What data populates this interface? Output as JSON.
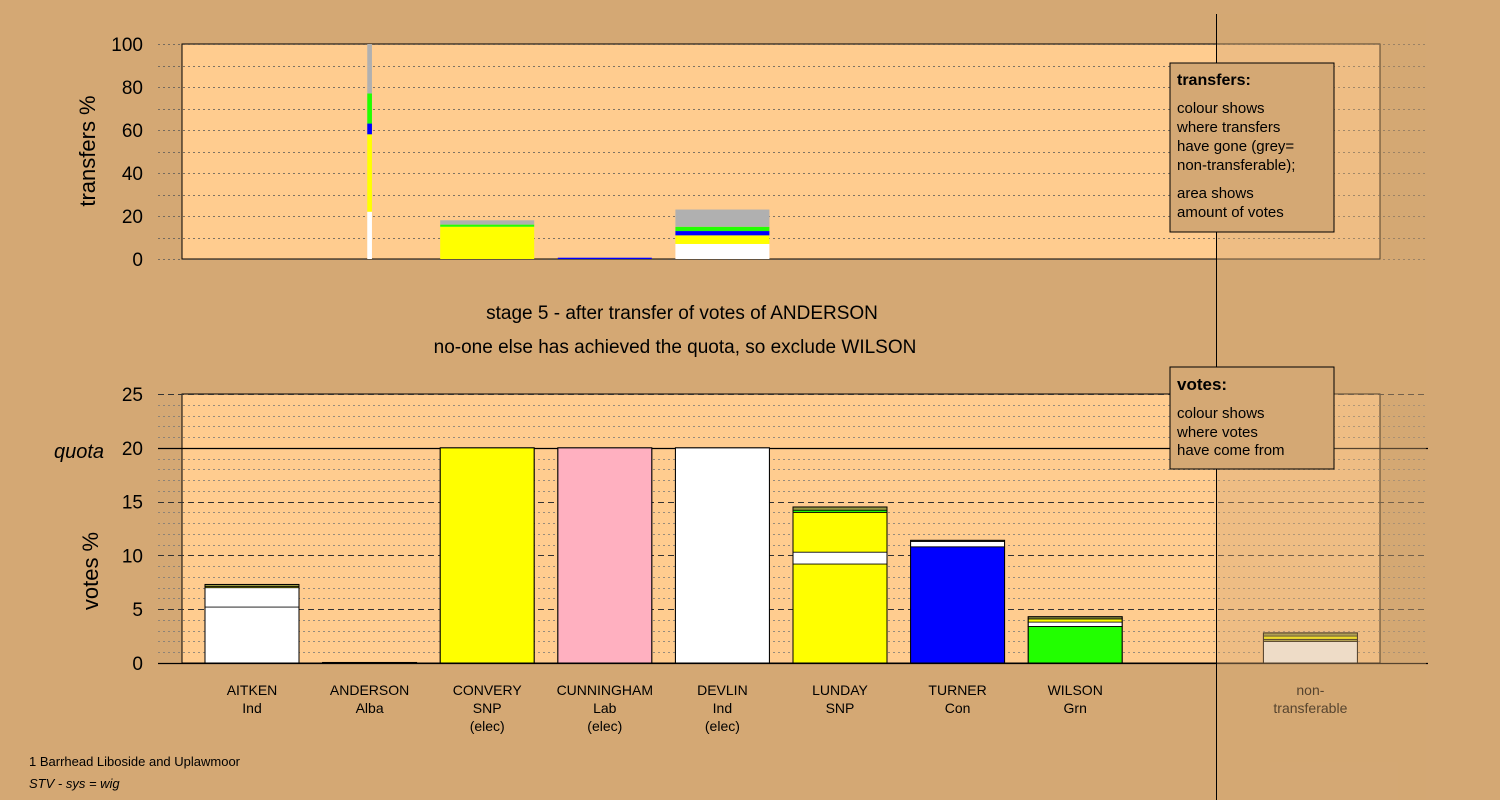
{
  "stage_title": "stage 5 - after transfer of votes of ANDERSON",
  "stage_subtitle": "no-one else has achieved the quota, so exclude WILSON",
  "footer_line1": "1 Barrhead Liboside and Uplawmoor",
  "footer_line2": "STV - sys = wig",
  "colors": {
    "background": "#d4a874",
    "plot_fill": "#ffcc8f",
    "white": "#ffffff",
    "snp_yellow": "#ffff00",
    "lab_pink": "#ffb0c0",
    "con_blue": "#0000ff",
    "grn_green": "#22ff00",
    "alba_navy": "#000080",
    "grey": "#b0b0b0",
    "olive": "#9a9a40"
  },
  "chart_data": [
    {
      "type": "bar",
      "stacked": true,
      "title": "",
      "ylabel": "transfers %",
      "ylim": [
        0,
        100
      ],
      "yticks": [
        0,
        20,
        40,
        60,
        80,
        100
      ],
      "legend": {
        "title": "transfers:",
        "lines": [
          "colour shows",
          "where transfers",
          "have gone (grey=",
          "non-transferable);"
        ],
        "lines2": [
          "area shows",
          "amount of votes"
        ],
        "placement": "top-right"
      },
      "bars": [
        {
          "category": "ANDERSON",
          "width_share": 0.05,
          "segments": [
            {
              "value": 22,
              "color": "#ffffff"
            },
            {
              "value": 36,
              "color": "#ffff00"
            },
            {
              "value": 5,
              "color": "#0000ff"
            },
            {
              "value": 14,
              "color": "#22ff00"
            },
            {
              "value": 23,
              "color": "#b0b0b0"
            }
          ]
        },
        {
          "category": "CONVERY",
          "width_share": 1,
          "segments": [
            {
              "value": 15,
              "color": "#ffff00"
            },
            {
              "value": 1,
              "color": "#22ff00"
            },
            {
              "value": 2,
              "color": "#b0b0b0"
            }
          ]
        },
        {
          "category": "CUNNINGHAM",
          "width_share": 1,
          "segments": [
            {
              "value": 0.6,
              "color": "#0000ff"
            }
          ]
        },
        {
          "category": "DEVLIN",
          "width_share": 1,
          "segments": [
            {
              "value": 7,
              "color": "#ffffff"
            },
            {
              "value": 4,
              "color": "#ffff00"
            },
            {
              "value": 2,
              "color": "#0000ff"
            },
            {
              "value": 2,
              "color": "#22ff00"
            },
            {
              "value": 8,
              "color": "#b0b0b0"
            }
          ]
        }
      ]
    },
    {
      "type": "bar",
      "stacked": true,
      "title": "",
      "ylabel": "votes %",
      "ylim": [
        0,
        25
      ],
      "yticks": [
        0,
        5,
        10,
        15,
        20,
        25
      ],
      "quota": {
        "value": 20,
        "label": "quota"
      },
      "legend": {
        "title": "votes:",
        "lines": [
          "colour shows",
          "where votes",
          "have come from"
        ],
        "placement": "top-right"
      },
      "categories": [
        {
          "name": "AITKEN",
          "party": "Ind",
          "status": ""
        },
        {
          "name": "ANDERSON",
          "party": "Alba",
          "status": ""
        },
        {
          "name": "CONVERY",
          "party": "SNP",
          "status": "(elec)"
        },
        {
          "name": "CUNNINGHAM",
          "party": "Lab",
          "status": "(elec)"
        },
        {
          "name": "DEVLIN",
          "party": "Ind",
          "status": "(elec)"
        },
        {
          "name": "LUNDAY",
          "party": "SNP",
          "status": ""
        },
        {
          "name": "TURNER",
          "party": "Con",
          "status": ""
        },
        {
          "name": "WILSON",
          "party": "Grn",
          "status": ""
        },
        {
          "name": "",
          "party": "",
          "status": ""
        },
        {
          "name": "non-",
          "party": "transferable",
          "status": ""
        }
      ],
      "bars": [
        {
          "category": "AITKEN",
          "segments": [
            {
              "value": 5.2,
              "color": "#ffffff"
            },
            {
              "value": 1.8,
              "color": "#ffffff"
            },
            {
              "value": 0.1,
              "color": "#ffff00"
            },
            {
              "value": 0.2,
              "color": "#9a9a40"
            }
          ]
        },
        {
          "category": "ANDERSON",
          "segments": [
            {
              "value": 0.05,
              "color": "#000080"
            }
          ]
        },
        {
          "category": "CONVERY",
          "segments": [
            {
              "value": 20,
              "color": "#ffff00"
            }
          ]
        },
        {
          "category": "CUNNINGHAM",
          "segments": [
            {
              "value": 20,
              "color": "#ffb0c0"
            }
          ]
        },
        {
          "category": "DEVLIN",
          "segments": [
            {
              "value": 20,
              "color": "#ffffff"
            }
          ]
        },
        {
          "category": "LUNDAY",
          "segments": [
            {
              "value": 9.2,
              "color": "#ffff00"
            },
            {
              "value": 1.1,
              "color": "#ffffff"
            },
            {
              "value": 3.7,
              "color": "#ffff00"
            },
            {
              "value": 0.2,
              "color": "#22ff00"
            },
            {
              "value": 0.3,
              "color": "#9a9a40"
            }
          ]
        },
        {
          "category": "TURNER",
          "segments": [
            {
              "value": 10.8,
              "color": "#0000ff"
            },
            {
              "value": 0.5,
              "color": "#ffffff"
            },
            {
              "value": 0.1,
              "color": "#9a9a40"
            }
          ]
        },
        {
          "category": "WILSON",
          "segments": [
            {
              "value": 3.4,
              "color": "#22ff00"
            },
            {
              "value": 0.4,
              "color": "#ffffff"
            },
            {
              "value": 0.3,
              "color": "#ffff00"
            },
            {
              "value": 0.2,
              "color": "#9a9a40"
            }
          ]
        },
        {
          "category": "non-transferable",
          "segments": [
            {
              "value": 2.0,
              "color": "#ffffff"
            },
            {
              "value": 0.2,
              "color": "#9a9a40"
            },
            {
              "value": 0.3,
              "color": "#ffff00"
            },
            {
              "value": 0.3,
              "color": "#9a9a40"
            }
          ]
        }
      ]
    }
  ]
}
